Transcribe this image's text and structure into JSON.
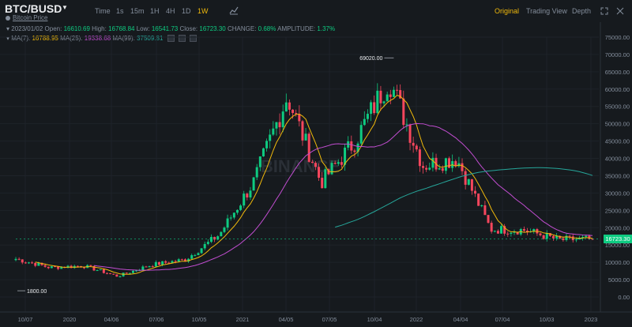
{
  "header": {
    "pair": "BTC/BUSD",
    "subtitle": "Bitcoin Price",
    "timeframes": [
      "Time",
      "1s",
      "15m",
      "1H",
      "4H",
      "1D",
      "1W"
    ],
    "active_timeframe": "1W",
    "views": [
      "Original",
      "Trading View",
      "Depth"
    ],
    "active_view": "Original"
  },
  "ohlc": {
    "date": "2023/01/02",
    "open_label": "Open:",
    "open": "16610.69",
    "high_label": "High:",
    "high": "16768.84",
    "low_label": "Low:",
    "low": "16541.73",
    "close_label": "Close:",
    "close": "16723.30",
    "change_label": "CHANGE:",
    "change": "0.68%",
    "amplitude_label": "AMPLITUDE:",
    "amplitude": "1.37%"
  },
  "ma": {
    "ma7_label": "MA(7):",
    "ma7": "16788.95",
    "ma25_label": "MA(25):",
    "ma25": "19338.68",
    "ma99_label": "MA(99):",
    "ma99": "37509.81"
  },
  "colors": {
    "up": "#0ecb81",
    "down": "#f6465d",
    "ma7": "#f0b90b",
    "ma25": "#c14dd0",
    "ma99": "#26a69a",
    "accent": "#f0b90b",
    "background": "#161a1e"
  },
  "watermark": "BINANCE",
  "current_price": "16723.30",
  "chart_data": {
    "type": "candlestick",
    "y_ticks": [
      "75000.00",
      "70000.00",
      "65000.00",
      "60000.00",
      "55000.00",
      "50000.00",
      "45000.00",
      "40000.00",
      "35000.00",
      "30000.00",
      "25000.00",
      "20000.00",
      "15000.00",
      "10000.00",
      "5000.00",
      "0.00"
    ],
    "x_ticks": [
      "10/07",
      "2020",
      "04/06",
      "07/06",
      "10/05",
      "2021",
      "04/05",
      "07/05",
      "10/04",
      "2022",
      "04/04",
      "07/04",
      "10/03",
      "2023"
    ],
    "ylim": [
      0,
      75000
    ],
    "annotations": [
      {
        "text": "69020.00",
        "x": "2021-11-08",
        "price": 69020
      },
      {
        "text": "1800.00",
        "x": "2019-07-01",
        "price": 1800
      }
    ],
    "close_series": [
      {
        "x": "2019-07",
        "close": 11000
      },
      {
        "x": "2019-10",
        "close": 8500
      },
      {
        "x": "2020-01",
        "close": 9000
      },
      {
        "x": "2020-03",
        "close": 6000
      },
      {
        "x": "2020-06",
        "close": 9300
      },
      {
        "x": "2020-09",
        "close": 10800
      },
      {
        "x": "2020-11",
        "close": 18000
      },
      {
        "x": "2021-01",
        "close": 33000
      },
      {
        "x": "2021-04",
        "close": 58000
      },
      {
        "x": "2021-06",
        "close": 33000
      },
      {
        "x": "2021-09",
        "close": 45000
      },
      {
        "x": "2021-11",
        "close": 63000
      },
      {
        "x": "2022-01",
        "close": 38000
      },
      {
        "x": "2022-04",
        "close": 40000
      },
      {
        "x": "2022-06",
        "close": 19500
      },
      {
        "x": "2022-09",
        "close": 19300
      },
      {
        "x": "2022-11",
        "close": 16500
      },
      {
        "x": "2023-01",
        "close": 16723.3
      }
    ]
  }
}
